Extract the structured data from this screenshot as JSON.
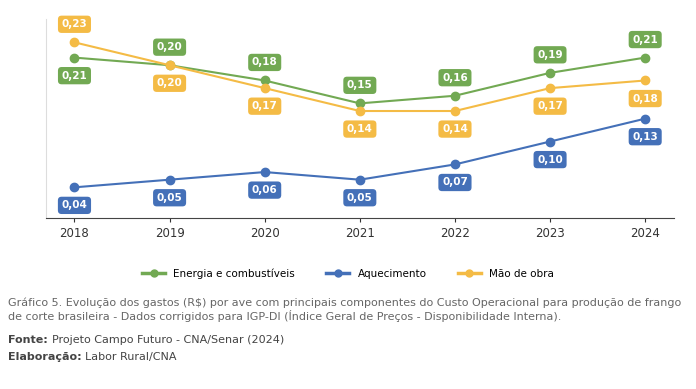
{
  "chart_data": {
    "type": "line",
    "categories": [
      "2018",
      "2019",
      "2020",
      "2021",
      "2022",
      "2023",
      "2024"
    ],
    "series": [
      {
        "name": "Energia e combustíveis",
        "color": "#72a953",
        "marker": "circle",
        "values": [
          0.21,
          0.2,
          0.18,
          0.15,
          0.16,
          0.19,
          0.21
        ],
        "value_labels": [
          "0,21",
          "0,20",
          "0,18",
          "0,15",
          "0,16",
          "0,19",
          "0,21"
        ]
      },
      {
        "name": "Aquecimento",
        "color": "#4470b8",
        "marker": "circle",
        "values": [
          0.04,
          0.05,
          0.06,
          0.05,
          0.07,
          0.1,
          0.13
        ],
        "value_labels": [
          "0,04",
          "0,05",
          "0,06",
          "0,05",
          "0,07",
          "0,10",
          "0,13"
        ]
      },
      {
        "name": "Mão de obra",
        "color": "#f4bb45",
        "marker": "circle",
        "values": [
          0.23,
          0.2,
          0.17,
          0.14,
          0.14,
          0.17,
          0.18
        ],
        "value_labels": [
          "0,23",
          "0,20",
          "0,17",
          "0,14",
          "0,14",
          "0,17",
          "0,18"
        ]
      }
    ],
    "ylim": [
      0,
      0.26
    ],
    "data_labels": true,
    "tick_labels": "x",
    "grid": false,
    "legend": "upper center",
    "caption": "Gráfico 5. Evolução dos gastos (R$) por ave com principais componentes do Custo Operacional para produção de frango de corte brasileira - Dados corrigidos para IGP-DI (Índice Geral de Preços - Disponibilidade Interna).",
    "source": {
      "label": "Fonte:",
      "text": "Projeto Campo Futuro - CNA/Senar (2024)"
    },
    "credit": {
      "label": "Elaboração:",
      "text": "Labor Rural/CNA"
    }
  }
}
